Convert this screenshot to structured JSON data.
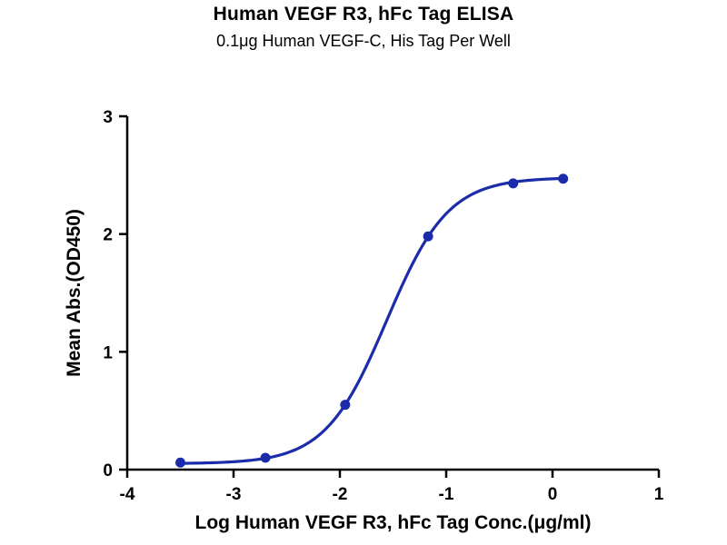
{
  "header": {
    "title": "Human VEGF R3, hFc Tag ELISA",
    "subtitle": "0.1μg Human VEGF-C, His Tag Per Well"
  },
  "chart_data": {
    "type": "scatter",
    "title": "Human VEGF R3, hFc Tag ELISA",
    "subtitle": "0.1μg Human VEGF-C, His Tag Per Well",
    "xlabel": "Log Human VEGF R3, hFc Tag Conc.(μg/ml)",
    "ylabel": "Mean Abs.(OD450)",
    "xlim": [
      -4,
      1
    ],
    "ylim": [
      0,
      3
    ],
    "x_ticks": [
      -4,
      -3,
      -2,
      -1,
      0,
      1
    ],
    "y_ticks": [
      0,
      1,
      2,
      3
    ],
    "grid": false,
    "legend": false,
    "points": [
      {
        "x": -3.5,
        "y": 0.06
      },
      {
        "x": -2.7,
        "y": 0.1
      },
      {
        "x": -1.95,
        "y": 0.55
      },
      {
        "x": -1.17,
        "y": 1.98
      },
      {
        "x": -0.37,
        "y": 2.43
      },
      {
        "x": 0.1,
        "y": 2.47
      }
    ],
    "fit_curve": {
      "model": "4PL",
      "bottom": 0.05,
      "top": 2.48,
      "log_ec50": -1.56,
      "hill": 1.5
    },
    "colors": {
      "curve": "#1b2caa",
      "point": "#1b2caa",
      "axis": "#000000"
    }
  }
}
